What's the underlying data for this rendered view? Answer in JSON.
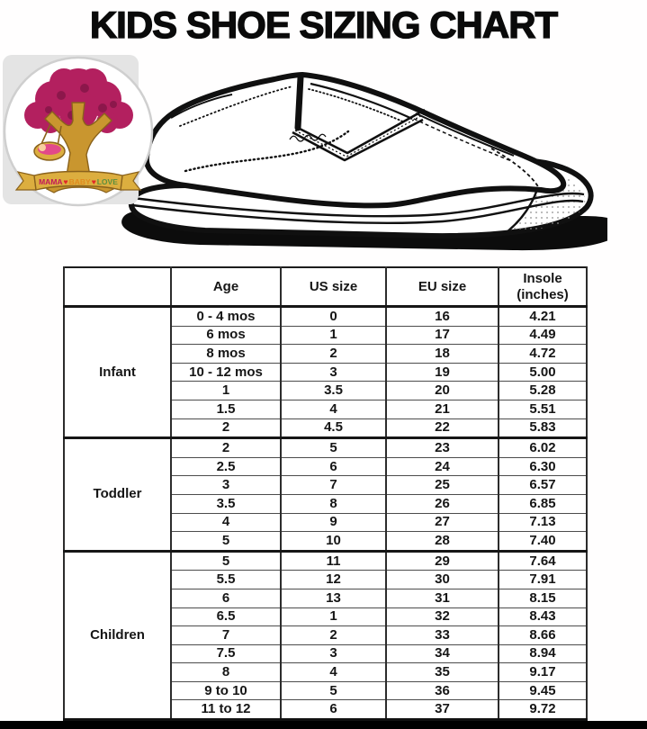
{
  "title": "KIDS SHOE SIZING CHART",
  "logo": {
    "name": "mama-baby-love-logo",
    "banner": {
      "word_mama": "MAMA",
      "heart1": "♥",
      "word_baby": "BABY",
      "heart2": "♥",
      "word_love": "LOVE"
    },
    "colors": {
      "canopy": "#b3205f",
      "canopy_dark": "#8c174b",
      "trunk": "#c9962f",
      "banner_gold": "#dcae3f",
      "badge_ring": "#cfcfcf"
    }
  },
  "illustration": {
    "name": "slip-on-shoe-line-drawing",
    "ink": "#101010"
  },
  "table": {
    "headers": [
      "Age",
      "US size",
      "EU size",
      "Insole (inches)"
    ]
  },
  "chart_data": {
    "type": "table",
    "title": "KIDS SHOE SIZING CHART",
    "columns": [
      "Age",
      "US size",
      "EU size",
      "Insole (inches)"
    ],
    "groups": [
      {
        "label": "Infant",
        "rows": [
          [
            "0 - 4 mos",
            "0",
            "16",
            "4.21"
          ],
          [
            "6 mos",
            "1",
            "17",
            "4.49"
          ],
          [
            "8 mos",
            "2",
            "18",
            "4.72"
          ],
          [
            "10 - 12 mos",
            "3",
            "19",
            "5.00"
          ],
          [
            "1",
            "3.5",
            "20",
            "5.28"
          ],
          [
            "1.5",
            "4",
            "21",
            "5.51"
          ],
          [
            "2",
            "4.5",
            "22",
            "5.83"
          ]
        ]
      },
      {
        "label": "Toddler",
        "rows": [
          [
            "2",
            "5",
            "23",
            "6.02"
          ],
          [
            "2.5",
            "6",
            "24",
            "6.30"
          ],
          [
            "3",
            "7",
            "25",
            "6.57"
          ],
          [
            "3.5",
            "8",
            "26",
            "6.85"
          ],
          [
            "4",
            "9",
            "27",
            "7.13"
          ],
          [
            "5",
            "10",
            "28",
            "7.40"
          ]
        ]
      },
      {
        "label": "Children",
        "rows": [
          [
            "5",
            "11",
            "29",
            "7.64"
          ],
          [
            "5.5",
            "12",
            "30",
            "7.91"
          ],
          [
            "6",
            "13",
            "31",
            "8.15"
          ],
          [
            "6.5",
            "1",
            "32",
            "8.43"
          ],
          [
            "7",
            "2",
            "33",
            "8.66"
          ],
          [
            "7.5",
            "3",
            "34",
            "8.94"
          ],
          [
            "8",
            "4",
            "35",
            "9.17"
          ],
          [
            "9 to 10",
            "5",
            "36",
            "9.45"
          ],
          [
            "11 to 12",
            "6",
            "37",
            "9.72"
          ]
        ]
      }
    ]
  }
}
